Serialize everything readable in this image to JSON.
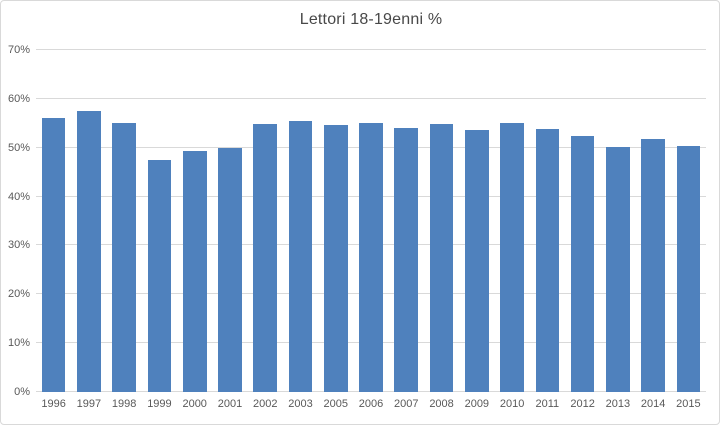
{
  "chart_data": {
    "type": "bar",
    "title": "Lettori 18-19enni %",
    "xlabel": "",
    "ylabel": "",
    "categories": [
      "1996",
      "1997",
      "1998",
      "1999",
      "2000",
      "2001",
      "2002",
      "2003",
      "2005",
      "2006",
      "2007",
      "2008",
      "2009",
      "2010",
      "2011",
      "2012",
      "2013",
      "2014",
      "2015"
    ],
    "values": [
      56.0,
      57.6,
      55.0,
      47.4,
      49.3,
      49.9,
      54.8,
      55.4,
      54.7,
      55.0,
      54.1,
      54.9,
      53.7,
      55.0,
      53.8,
      52.4,
      50.1,
      51.8,
      50.4
    ],
    "ylim": [
      0,
      70
    ],
    "yticks": [
      {
        "value": 0,
        "label": "0%"
      },
      {
        "value": 10,
        "label": "10%"
      },
      {
        "value": 20,
        "label": "20%"
      },
      {
        "value": 30,
        "label": "30%"
      },
      {
        "value": 40,
        "label": "40%"
      },
      {
        "value": 50,
        "label": "50%"
      },
      {
        "value": 60,
        "label": "60%"
      },
      {
        "value": 70,
        "label": "70%"
      }
    ],
    "grid": true,
    "legend_position": "none",
    "colors": {
      "bar": "#4f81bd",
      "gridline": "#d9d9d9",
      "axis_text": "#595959",
      "title": "#484848",
      "frame_border": "#d9d9d9",
      "background": "#ffffff"
    }
  }
}
